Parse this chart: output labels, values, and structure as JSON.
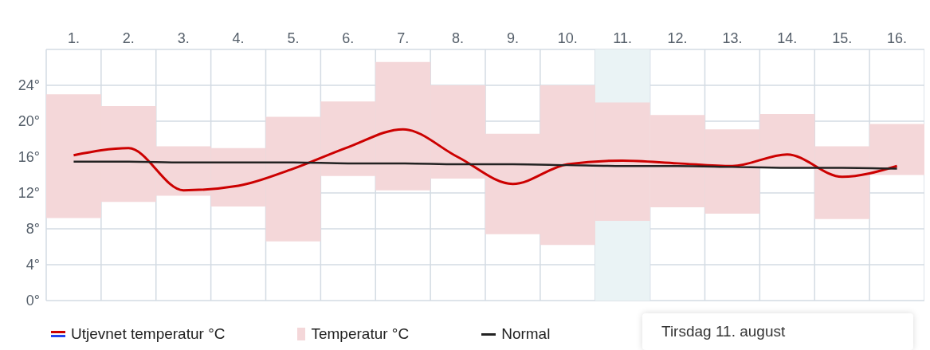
{
  "chart_data": {
    "type": "bar",
    "categories": [
      "1.",
      "2.",
      "3.",
      "4.",
      "5.",
      "6.",
      "7.",
      "8.",
      "9.",
      "10.",
      "11.",
      "12.",
      "13.",
      "14.",
      "15.",
      "16."
    ],
    "series": [
      {
        "name": "Utjevnet temperatur °C",
        "type": "line",
        "color": "#cc0000",
        "values": [
          16.2,
          17.0,
          12.3,
          12.8,
          14.7,
          17.1,
          19.1,
          16.0,
          13.0,
          15.2,
          15.6,
          15.3,
          15.0,
          16.3,
          13.8,
          15.0
        ]
      },
      {
        "name": "Temperatur °C",
        "color": "#f4d7d9",
        "base": [
          9.2,
          11.0,
          11.7,
          10.5,
          6.6,
          13.9,
          12.3,
          13.6,
          7.4,
          6.2,
          8.9,
          10.4,
          9.7,
          14.8,
          9.1,
          14.0
        ],
        "values": [
          13.8,
          10.7,
          5.5,
          6.5,
          13.9,
          8.3,
          14.3,
          10.4,
          11.2,
          17.8,
          13.2,
          10.3,
          9.4,
          6.0,
          8.1,
          5.7
        ]
      },
      {
        "name": "Normal",
        "type": "line",
        "color": "#222222",
        "values": [
          15.5,
          15.5,
          15.4,
          15.4,
          15.4,
          15.3,
          15.3,
          15.2,
          15.2,
          15.1,
          15.0,
          15.0,
          14.9,
          14.8,
          14.8,
          14.7
        ]
      }
    ],
    "ylim": [
      0,
      28
    ],
    "yticks": [
      {
        "value": 0,
        "label": "0°"
      },
      {
        "value": 4,
        "label": "4°"
      },
      {
        "value": 8,
        "label": "8°"
      },
      {
        "value": 12,
        "label": "12°"
      },
      {
        "value": 16,
        "label": "16°"
      },
      {
        "value": 20,
        "label": "20°"
      },
      {
        "value": 24,
        "label": "24°"
      },
      {
        "value": 28,
        "label": null
      }
    ],
    "bands": [
      {
        "axis": "x",
        "from": "11.",
        "to": "11.",
        "color": "#eaf3f5"
      }
    ],
    "grid": true,
    "legend": "bottom left",
    "marker": "none",
    "line_style": "solid",
    "annotations": [
      "Tirsdag 11. august"
    ]
  }
}
